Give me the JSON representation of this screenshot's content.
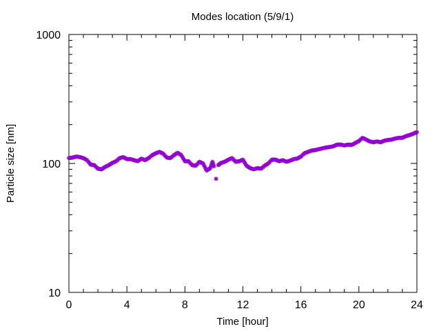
{
  "chart_data": {
    "type": "scatter",
    "title": "Modes location (5/9/1)",
    "xlabel": "Time [hour]",
    "ylabel": "Particle size [nm]",
    "xlim": [
      0,
      24
    ],
    "ylim": [
      10,
      1000
    ],
    "y_scale": "log",
    "grid": false,
    "x_ticks": [
      0,
      4,
      8,
      12,
      16,
      20,
      24
    ],
    "x_tick_labels": [
      "0",
      "4",
      "8",
      "12",
      "16",
      "20",
      "24"
    ],
    "y_ticks": [
      10,
      100,
      1000
    ],
    "y_tick_labels": [
      "10",
      "100",
      "1000"
    ],
    "marker_color": "#9400d3",
    "series": [
      {
        "x": [
          0.0,
          0.25,
          0.5,
          0.75,
          1.0,
          1.25,
          1.5,
          1.75,
          2.0,
          2.25,
          2.5,
          2.75,
          3.0,
          3.25,
          3.5,
          3.75,
          4.0,
          4.25,
          4.5,
          4.75,
          5.0,
          5.25,
          5.5,
          5.75,
          6.0,
          6.25,
          6.5,
          6.75,
          7.0,
          7.25,
          7.5,
          7.75,
          8.0,
          8.25,
          8.5,
          8.75,
          9.0,
          9.25,
          9.5,
          9.75,
          9.9,
          10.0,
          10.15,
          10.3,
          10.5,
          10.75,
          11.0,
          11.25,
          11.5,
          11.75,
          12.0,
          12.25,
          12.5,
          12.75,
          13.0,
          13.25,
          13.5,
          13.75,
          14.0,
          14.25,
          14.5,
          14.75,
          15.0,
          15.25,
          15.5,
          15.75,
          16.0,
          16.25,
          16.5,
          16.75,
          17.0,
          17.25,
          17.5,
          17.75,
          18.0,
          18.25,
          18.5,
          18.75,
          19.0,
          19.25,
          19.5,
          19.75,
          20.0,
          20.25,
          20.5,
          20.75,
          21.0,
          21.25,
          21.5,
          21.75,
          22.0,
          22.25,
          22.5,
          22.75,
          23.0,
          23.25,
          23.5,
          23.75,
          24.0
        ],
        "y": [
          110,
          111,
          113,
          112,
          110,
          106,
          98,
          97,
          91,
          90,
          94,
          97,
          101,
          104,
          110,
          112,
          108,
          108,
          106,
          104,
          109,
          106,
          110,
          116,
          120,
          123,
          119,
          111,
          110,
          116,
          121,
          116,
          104,
          104,
          97,
          96,
          103,
          100,
          88,
          92,
          103,
          95,
          76,
          97,
          101,
          103,
          107,
          110,
          103,
          104,
          107,
          96,
          92,
          90,
          92,
          91,
          96,
          100,
          107,
          107,
          104,
          106,
          103,
          105,
          108,
          109,
          113,
          120,
          123,
          126,
          127,
          129,
          131,
          133,
          134,
          136,
          140,
          140,
          138,
          140,
          139,
          144,
          149,
          158,
          153,
          148,
          146,
          148,
          146,
          150,
          152,
          153,
          156,
          158,
          158,
          163,
          166,
          170,
          175
        ]
      }
    ]
  }
}
